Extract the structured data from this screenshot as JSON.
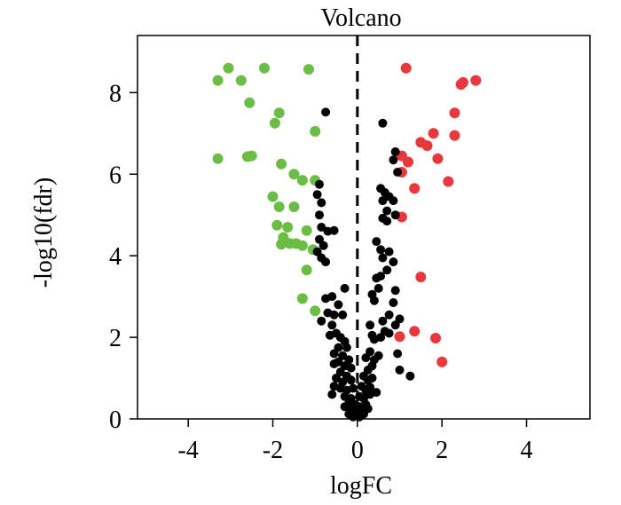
{
  "chart_data": {
    "type": "scatter",
    "title": "Volcano",
    "xlabel": "logFC",
    "ylabel": "-log10(fdr)",
    "xlim": [
      -5.2,
      5.5
    ],
    "ylim": [
      0,
      9.4
    ],
    "xticks": [
      -4,
      -2,
      0,
      2,
      4
    ],
    "yticks": [
      0,
      2,
      4,
      6,
      8
    ],
    "grid": false,
    "legend": "none",
    "reference_line": {
      "x": 0,
      "style": "dashed"
    },
    "colors": {
      "down": "#6cbd45",
      "up": "#e8383d",
      "ns": "#000000"
    },
    "series": [
      {
        "color_key": "down",
        "points": [
          [
            -3.05,
            8.6
          ],
          [
            -2.2,
            8.6
          ],
          [
            -1.15,
            8.57
          ],
          [
            -3.3,
            8.3
          ],
          [
            -2.75,
            8.3
          ],
          [
            -2.55,
            7.75
          ],
          [
            -1.85,
            7.5
          ],
          [
            -1.95,
            7.25
          ],
          [
            -1.0,
            7.05
          ],
          [
            -3.3,
            6.38
          ],
          [
            -2.6,
            6.43
          ],
          [
            -2.5,
            6.45
          ],
          [
            -1.8,
            6.25
          ],
          [
            -1.5,
            6.0
          ],
          [
            -1.3,
            5.85
          ],
          [
            -1.0,
            5.85
          ],
          [
            -2.0,
            5.45
          ],
          [
            -1.85,
            5.2
          ],
          [
            -1.5,
            5.2
          ],
          [
            -1.9,
            4.75
          ],
          [
            -1.65,
            4.7
          ],
          [
            -1.2,
            4.62
          ],
          [
            -1.75,
            4.45
          ],
          [
            -1.45,
            4.3
          ],
          [
            -1.8,
            4.28
          ],
          [
            -1.6,
            4.3
          ],
          [
            -1.3,
            4.25
          ],
          [
            -1.05,
            4.15
          ],
          [
            -1.2,
            3.65
          ],
          [
            -1.3,
            2.95
          ],
          [
            -1.0,
            2.65
          ]
        ]
      },
      {
        "color_key": "up",
        "points": [
          [
            1.15,
            8.6
          ],
          [
            2.45,
            8.2
          ],
          [
            2.5,
            8.25
          ],
          [
            2.8,
            8.3
          ],
          [
            2.3,
            7.5
          ],
          [
            1.8,
            7.0
          ],
          [
            1.5,
            6.78
          ],
          [
            1.65,
            6.7
          ],
          [
            2.3,
            6.95
          ],
          [
            1.05,
            6.45
          ],
          [
            1.2,
            6.3
          ],
          [
            1.9,
            6.38
          ],
          [
            1.05,
            6.05
          ],
          [
            1.35,
            5.65
          ],
          [
            2.15,
            5.82
          ],
          [
            1.05,
            4.95
          ],
          [
            1.5,
            3.48
          ],
          [
            1.35,
            2.15
          ],
          [
            1.0,
            2.02
          ],
          [
            1.85,
            1.98
          ],
          [
            2.0,
            1.4
          ]
        ]
      },
      {
        "color_key": "ns",
        "points": [
          [
            -0.75,
            7.52
          ],
          [
            0.6,
            7.25
          ],
          [
            0.9,
            6.55
          ],
          [
            0.85,
            6.35
          ],
          [
            0.95,
            6.05
          ],
          [
            0.55,
            5.65
          ],
          [
            0.65,
            5.55
          ],
          [
            0.75,
            5.45
          ],
          [
            0.6,
            5.35
          ],
          [
            0.85,
            5.35
          ],
          [
            0.7,
            5.1
          ],
          [
            0.9,
            5.0
          ],
          [
            0.6,
            4.92
          ],
          [
            0.7,
            4.85
          ],
          [
            -0.9,
            5.75
          ],
          [
            -0.95,
            5.5
          ],
          [
            -0.85,
            5.3
          ],
          [
            -0.9,
            5.0
          ],
          [
            -0.7,
            4.6
          ],
          [
            -0.55,
            4.62
          ],
          [
            -0.85,
            4.7
          ],
          [
            -0.9,
            4.4
          ],
          [
            -0.8,
            4.25
          ],
          [
            -0.95,
            4.1
          ],
          [
            -0.85,
            3.95
          ],
          [
            -0.75,
            3.85
          ],
          [
            0.45,
            4.35
          ],
          [
            0.55,
            4.15
          ],
          [
            0.6,
            3.95
          ],
          [
            0.75,
            4.1
          ],
          [
            0.85,
            3.85
          ],
          [
            0.7,
            3.65
          ],
          [
            0.45,
            3.45
          ],
          [
            0.55,
            3.5
          ],
          [
            0.35,
            3.05
          ],
          [
            0.4,
            2.9
          ],
          [
            0.5,
            3.2
          ],
          [
            0.9,
            3.15
          ],
          [
            0.85,
            2.85
          ],
          [
            0.75,
            2.55
          ],
          [
            0.6,
            2.4
          ],
          [
            -0.3,
            3.2
          ],
          [
            -0.6,
            3.0
          ],
          [
            -0.75,
            2.95
          ],
          [
            -0.45,
            2.8
          ],
          [
            -0.55,
            2.55
          ],
          [
            -0.7,
            2.6
          ],
          [
            -0.35,
            2.55
          ],
          [
            -0.85,
            2.4
          ],
          [
            -0.6,
            2.3
          ],
          [
            -0.5,
            2.1
          ],
          [
            -0.4,
            2.0
          ],
          [
            -0.3,
            1.9
          ],
          [
            -0.65,
            2.05
          ],
          [
            0.3,
            2.3
          ],
          [
            0.35,
            2.05
          ],
          [
            0.4,
            1.95
          ],
          [
            0.55,
            2.0
          ],
          [
            0.65,
            2.15
          ],
          [
            0.75,
            2.1
          ],
          [
            0.9,
            2.3
          ],
          [
            1.0,
            2.45
          ],
          [
            0.95,
            1.6
          ],
          [
            -0.25,
            1.75
          ],
          [
            -0.45,
            1.75
          ],
          [
            -0.55,
            1.6
          ],
          [
            -0.35,
            1.55
          ],
          [
            -0.2,
            1.45
          ],
          [
            -0.45,
            1.4
          ],
          [
            -0.55,
            1.35
          ],
          [
            -0.3,
            1.3
          ],
          [
            -0.15,
            1.25
          ],
          [
            0.2,
            1.5
          ],
          [
            0.3,
            1.65
          ],
          [
            0.4,
            1.45
          ],
          [
            0.5,
            1.55
          ],
          [
            0.35,
            1.3
          ],
          [
            0.25,
            1.2
          ],
          [
            -0.4,
            1.15
          ],
          [
            -0.25,
            1.05
          ],
          [
            -0.5,
            1.0
          ],
          [
            -0.35,
            0.9
          ],
          [
            -0.15,
            0.95
          ],
          [
            0.15,
            1.05
          ],
          [
            0.25,
            0.95
          ],
          [
            0.35,
            1.0
          ],
          [
            1.0,
            1.2
          ],
          [
            1.25,
            1.05
          ],
          [
            -0.55,
            0.8
          ],
          [
            -0.4,
            0.75
          ],
          [
            -0.25,
            0.7
          ],
          [
            -0.1,
            0.75
          ],
          [
            0.1,
            0.8
          ],
          [
            0.2,
            0.7
          ],
          [
            0.3,
            0.78
          ],
          [
            -0.6,
            0.6
          ],
          [
            -0.3,
            0.55
          ],
          [
            -0.15,
            0.5
          ],
          [
            0.05,
            0.55
          ],
          [
            0.15,
            0.5
          ],
          [
            0.3,
            0.6
          ],
          [
            0.45,
            0.65
          ],
          [
            -0.2,
            0.4
          ],
          [
            -0.05,
            0.35
          ],
          [
            0.05,
            0.3
          ],
          [
            0.2,
            0.35
          ],
          [
            -0.3,
            0.3
          ],
          [
            -0.15,
            0.22
          ],
          [
            0.1,
            0.2
          ],
          [
            0.25,
            0.25
          ],
          [
            -0.05,
            0.15
          ],
          [
            0.0,
            0.1
          ],
          [
            0.15,
            0.12
          ],
          [
            -0.2,
            0.12
          ],
          [
            0.05,
            0.05
          ],
          [
            -0.1,
            0.05
          ]
        ]
      }
    ]
  }
}
